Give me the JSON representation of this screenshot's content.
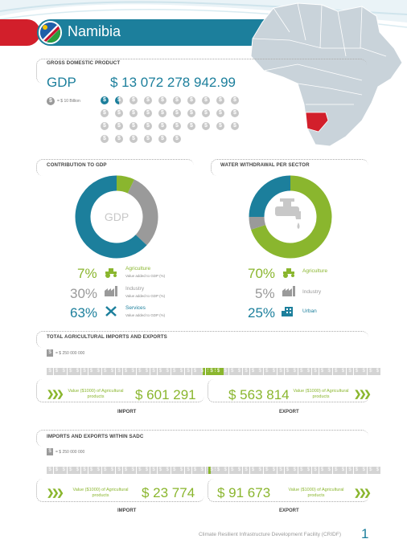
{
  "header": {
    "country": "Namibia"
  },
  "gdp": {
    "section_title": "GROSS DOMESTIC PRODUCT",
    "label": "GDP",
    "value": "$ 13 072 278 942.99",
    "legend": "= $ 10 Billion",
    "coins_total": 36,
    "coins_filled": 1.3
  },
  "contribution": {
    "section_title": "CONTRIBUTION TO GDP",
    "center_label": "GDP",
    "sub_label": "Value added to GDP (%)",
    "items": [
      {
        "pct": "7%",
        "label": "Agriculture",
        "color": "#8ab62e",
        "value": 7
      },
      {
        "pct": "30%",
        "label": "Industry",
        "color": "#9a9a9a",
        "value": 30
      },
      {
        "pct": "63%",
        "label": "Services",
        "color": "#1c7f9c",
        "value": 63
      }
    ]
  },
  "water": {
    "section_title": "WATER WITHDRAWAL PER SECTOR",
    "items": [
      {
        "pct": "70%",
        "label": "Agriculture",
        "color": "#8ab62e",
        "value": 70
      },
      {
        "pct": "5%",
        "label": "Industry",
        "color": "#9a9a9a",
        "value": 5
      },
      {
        "pct": "25%",
        "label": "Urban",
        "color": "#1c7f9c",
        "value": 25
      }
    ]
  },
  "agri_trade": {
    "section_title": "TOTAL AGRICULTURAL IMPORTS AND EXPORTS",
    "legend": "= $ 250 000 000",
    "value_desc": "Value ($1000) of Agricultural products",
    "import_value": "$ 601 291",
    "export_value": "$ 563 814",
    "import_label": "IMPORT",
    "export_label": "EXPORT",
    "import_filled": 2.4,
    "export_filled": 2.25
  },
  "sadc_trade": {
    "section_title": "IMPORTS AND EXPORTS WITHIN SADC",
    "legend": "= $ 250 000 000",
    "value_desc": "Value ($1000) of Agricultural products",
    "import_value": "$ 23 774",
    "export_value": "$ 91 673",
    "import_label": "IMPORT",
    "export_label": "EXPORT",
    "import_filled": 0.1,
    "export_filled": 0.37
  },
  "footer": {
    "text": "Climate Resilient Infrastructure Development Facility (CRIDF)",
    "page": "1"
  },
  "icons": [
    "tractor-icon",
    "factory-icon",
    "tools-icon",
    "tap-icon",
    "building-icon",
    "dollar-icon",
    "chevrons-icon"
  ]
}
